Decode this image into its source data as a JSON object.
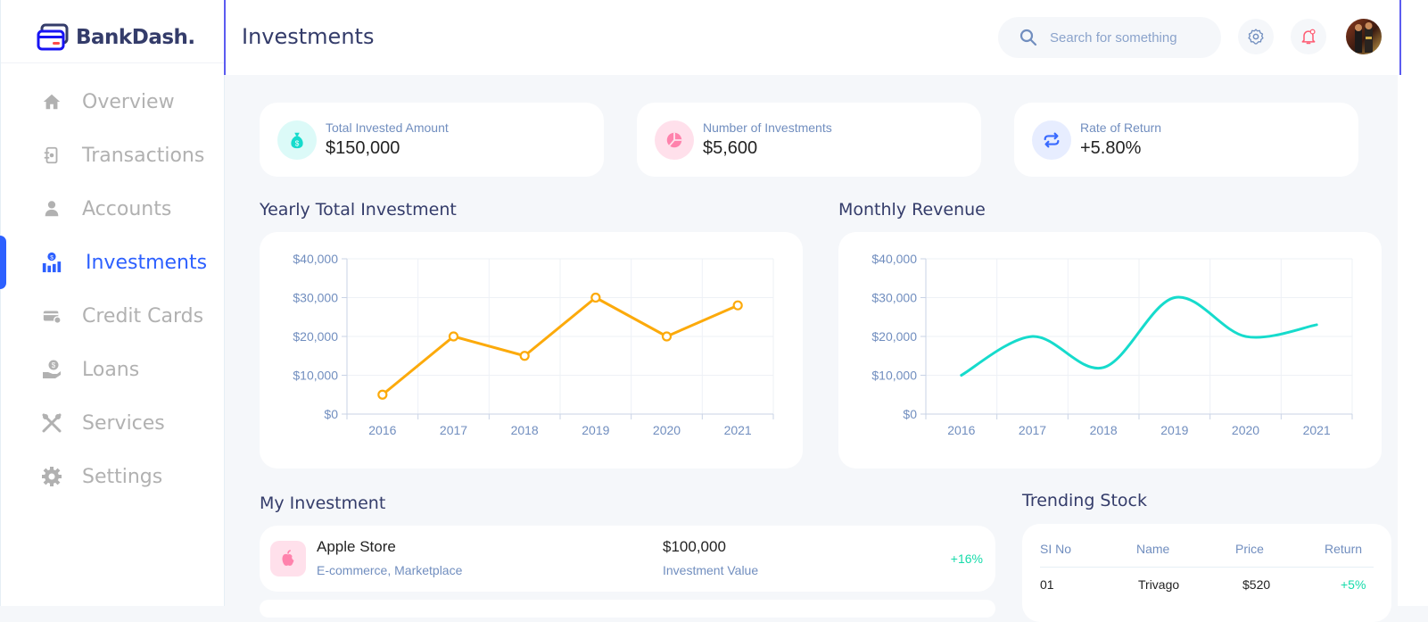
{
  "app": {
    "logo_text": "BankDash."
  },
  "sidebar": {
    "items": [
      {
        "label": "Overview",
        "icon": "home-icon"
      },
      {
        "label": "Transactions",
        "icon": "transfer-icon"
      },
      {
        "label": "Accounts",
        "icon": "user-icon"
      },
      {
        "label": "Investments",
        "icon": "investment-icon",
        "active": true
      },
      {
        "label": "Credit Cards",
        "icon": "credit-card-icon"
      },
      {
        "label": "Loans",
        "icon": "loan-icon"
      },
      {
        "label": "Services",
        "icon": "services-icon"
      },
      {
        "label": "Settings",
        "icon": "settings-icon"
      }
    ]
  },
  "header": {
    "title": "Investments",
    "search_placeholder": "Search for something"
  },
  "stats": [
    {
      "label": "Total Invested Amount",
      "value": "$150,000",
      "icon": "money-bag-icon",
      "color": "#16dbcc",
      "bg": "#dcfaf8"
    },
    {
      "label": "Number of Investments",
      "value": "$5,600",
      "icon": "pie-chart-icon",
      "color": "#ff82ac",
      "bg": "#ffe0eb"
    },
    {
      "label": "Rate of Return",
      "value": "+5.80%",
      "icon": "repeat-icon",
      "color": "#396aff",
      "bg": "#e7edff"
    }
  ],
  "sections": {
    "yearly": "Yearly Total Investment",
    "monthly": "Monthly Revenue",
    "my_investment": "My Investment",
    "trending": "Trending Stock"
  },
  "chart_data": [
    {
      "type": "line",
      "x": [
        "2016",
        "2017",
        "2018",
        "2019",
        "2020",
        "2021"
      ],
      "y_ticks": [
        "$0",
        "$10,000",
        "$20,000",
        "$30,000",
        "$40,000"
      ],
      "ylim": [
        0,
        40000
      ],
      "series": [
        {
          "values": [
            5000,
            20000,
            15000,
            30000,
            20000,
            28000
          ],
          "color": "#fcaa0b",
          "markers": true
        }
      ],
      "grid": true
    },
    {
      "type": "line",
      "x": [
        "2016",
        "2017",
        "2018",
        "2019",
        "2020",
        "2021"
      ],
      "y_ticks": [
        "$0",
        "$10,000",
        "$20,000",
        "$30,000",
        "$40,000"
      ],
      "ylim": [
        0,
        40000
      ],
      "series": [
        {
          "values": [
            10000,
            20000,
            12000,
            30000,
            20000,
            23000
          ],
          "color": "#16dbcc",
          "smooth": true
        }
      ],
      "grid": true
    }
  ],
  "my_investment": [
    {
      "name": "Apple Store",
      "category": "E-commerce, Marketplace",
      "value": "$100,000",
      "value_label": "Investment Value",
      "return": "+16%",
      "icon": "apple-icon"
    }
  ],
  "trending": {
    "headers": [
      "SI No",
      "Name",
      "Price",
      "Return"
    ],
    "rows": [
      {
        "no": "01",
        "name": "Trivago",
        "price": "$520",
        "return": "+5%"
      }
    ]
  }
}
